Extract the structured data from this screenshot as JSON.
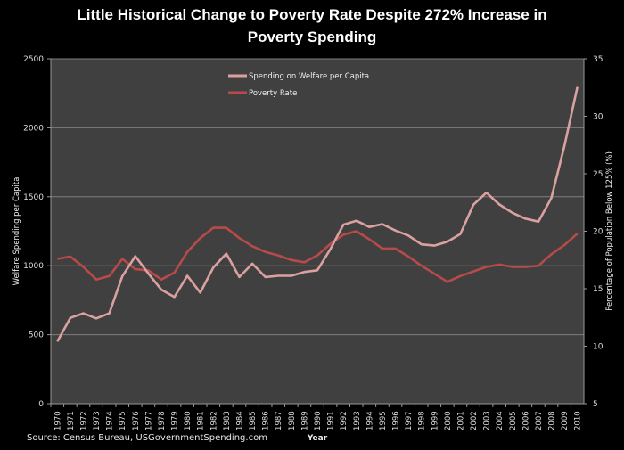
{
  "chart_data": {
    "type": "line",
    "title_lines": [
      "Little Historical Change to Poverty Rate Despite 272% Increase in",
      "Poverty Spending"
    ],
    "xlabel": "Year",
    "ylabel_left": "Welfare Spending per Capita",
    "ylabel_right": "Percentage of Population  Below 125% (%)",
    "ylim_left": [
      0,
      2500
    ],
    "yticks_left": [
      "0",
      "500",
      "1000",
      "1500",
      "2000",
      "2500"
    ],
    "ylim_right": [
      5,
      35
    ],
    "yticks_right": [
      "5",
      "10",
      "15",
      "20",
      "25",
      "30",
      "35"
    ],
    "grid": "horizontal (left axis)",
    "legend_placement": "top-center",
    "categories": [
      "1970",
      "1971",
      "1972",
      "1973",
      "1974",
      "1975",
      "1976",
      "1977",
      "1978",
      "1979",
      "1980",
      "1981",
      "1982",
      "1983",
      "1984",
      "1985",
      "1986",
      "1987",
      "1988",
      "1989",
      "1990",
      "1991",
      "1992",
      "1993",
      "1994",
      "1995",
      "1996",
      "1997",
      "1998",
      "1999",
      "2000",
      "2001",
      "2002",
      "2003",
      "2004",
      "2005",
      "2006",
      "2007",
      "2008",
      "2009",
      "2010"
    ],
    "series": [
      {
        "name": "Spending on Welfare per Capita",
        "axis": "left",
        "color": "#dba1a1",
        "values": [
          450,
          622,
          655,
          618,
          655,
          923,
          1069,
          944,
          826,
          773,
          927,
          805,
          987,
          1088,
          918,
          1015,
          918,
          927,
          927,
          955,
          967,
          1120,
          1298,
          1326,
          1281,
          1302,
          1255,
          1219,
          1155,
          1146,
          1174,
          1230,
          1442,
          1530,
          1444,
          1384,
          1341,
          1320,
          1491,
          1867,
          2296
        ]
      },
      {
        "name": "Poverty Rate",
        "axis": "right",
        "color": "#b84a4a",
        "values": [
          17.6,
          17.8,
          16.9,
          15.8,
          16.1,
          17.6,
          16.7,
          16.6,
          15.8,
          16.4,
          18.2,
          19.4,
          20.3,
          20.3,
          19.4,
          18.7,
          18.2,
          17.9,
          17.5,
          17.3,
          17.9,
          18.9,
          19.7,
          20.0,
          19.3,
          18.5,
          18.5,
          17.8,
          17.0,
          16.3,
          15.6,
          16.1,
          16.5,
          16.9,
          17.1,
          16.9,
          16.9,
          17.0,
          18.0,
          18.8,
          19.8
        ]
      }
    ],
    "source": "Source: Census Bureau, USGovernmentSpending.com",
    "colors": {
      "background": "#000000",
      "plot_area": "#404040",
      "gridline": "#7d7d7d"
    }
  }
}
